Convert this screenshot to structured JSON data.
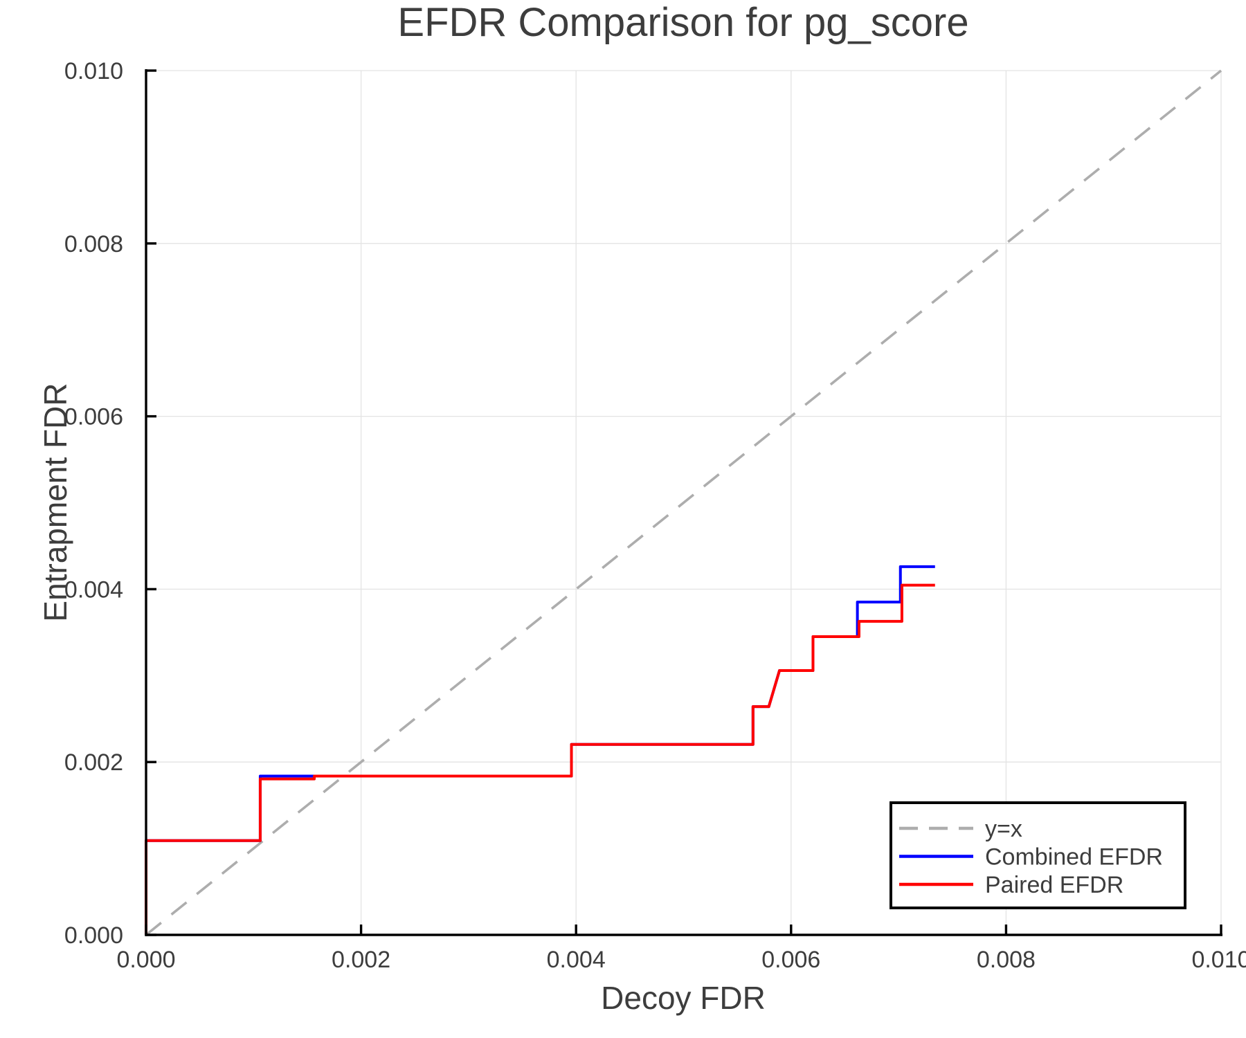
{
  "chart_data": {
    "type": "line",
    "title": "EFDR Comparison for pg_score",
    "xlabel": "Decoy FDR",
    "ylabel": "Entrapment FDR",
    "xlim": [
      0.0,
      0.01
    ],
    "ylim": [
      0.0,
      0.01
    ],
    "xtick_labels": [
      "0.000",
      "0.002",
      "0.004",
      "0.006",
      "0.008",
      "0.010"
    ],
    "ytick_labels": [
      "0.000",
      "0.002",
      "0.004",
      "0.006",
      "0.008",
      "0.010"
    ],
    "grid": true,
    "legend_position": "bottom-right",
    "text_color": "#3d3d3d",
    "grid_color": "#e3e3e3",
    "axis_color": "#000000",
    "series": [
      {
        "name": "y=x",
        "style": "dashed",
        "color": "#adadad",
        "x": [
          0.0,
          0.01
        ],
        "y": [
          0.0,
          0.01
        ]
      },
      {
        "name": "Combined EFDR",
        "style": "solid",
        "color": "#0000ff",
        "x": [
          0.0,
          0.0,
          0.001062,
          0.001062,
          0.003957,
          0.003957,
          0.005646,
          0.005646,
          0.005793,
          0.005892,
          0.006204,
          0.006204,
          0.006617,
          0.006617,
          0.007017,
          0.007017,
          0.007339
        ],
        "y": [
          0.0,
          0.001091,
          0.001091,
          0.001837,
          0.001837,
          0.002204,
          0.002204,
          0.002641,
          0.002641,
          0.003058,
          0.003058,
          0.003451,
          0.003451,
          0.003851,
          0.003851,
          0.00426,
          0.00426
        ]
      },
      {
        "name": "Paired EFDR",
        "style": "solid",
        "color": "#ff0000",
        "x": [
          0.0,
          0.0,
          0.001062,
          0.001062,
          0.001565,
          0.001565,
          0.003957,
          0.003957,
          0.005646,
          0.005646,
          0.005793,
          0.005892,
          0.006204,
          0.006204,
          0.006632,
          0.006632,
          0.007031,
          0.007031,
          0.007339
        ],
        "y": [
          0.0,
          0.001091,
          0.001091,
          0.001804,
          0.001804,
          0.001837,
          0.001837,
          0.002204,
          0.002204,
          0.002641,
          0.002641,
          0.003058,
          0.003058,
          0.003451,
          0.003451,
          0.003628,
          0.003628,
          0.004046,
          0.004046
        ]
      }
    ]
  }
}
